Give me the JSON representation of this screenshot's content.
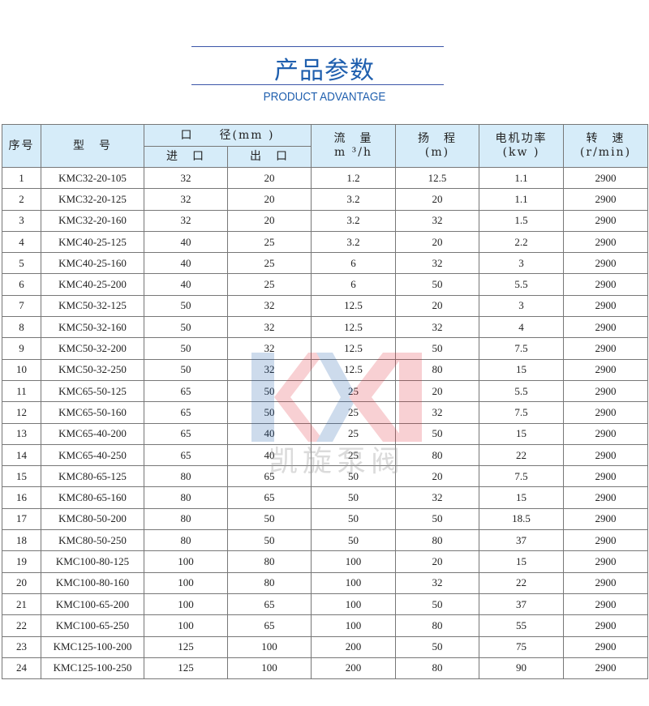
{
  "header": {
    "title": "产品参数",
    "subtitle": "PRODUCT ADVANTAGE"
  },
  "table": {
    "headers": {
      "no": "序号",
      "model": "型　号",
      "diameter": "口　　径(mm )",
      "inlet": "进　口",
      "outlet": "出　口",
      "flow": "流　量",
      "flow_unit": "m ³/h",
      "head": "扬　程",
      "head_unit": "(m)",
      "power": "电机功率",
      "power_unit": "(kw )",
      "speed": "转　速",
      "speed_unit": "(r/min)"
    },
    "rows": [
      [
        "1",
        "KMC32-20-105",
        "32",
        "20",
        "1.2",
        "12.5",
        "1.1",
        "2900"
      ],
      [
        "2",
        "KMC32-20-125",
        "32",
        "20",
        "3.2",
        "20",
        "1.1",
        "2900"
      ],
      [
        "3",
        "KMC32-20-160",
        "32",
        "20",
        "3.2",
        "32",
        "1.5",
        "2900"
      ],
      [
        "4",
        "KMC40-25-125",
        "40",
        "25",
        "3.2",
        "20",
        "2.2",
        "2900"
      ],
      [
        "5",
        "KMC40-25-160",
        "40",
        "25",
        "6",
        "32",
        "3",
        "2900"
      ],
      [
        "6",
        "KMC40-25-200",
        "40",
        "25",
        "6",
        "50",
        "5.5",
        "2900"
      ],
      [
        "7",
        "KMC50-32-125",
        "50",
        "32",
        "12.5",
        "20",
        "3",
        "2900"
      ],
      [
        "8",
        "KMC50-32-160",
        "50",
        "32",
        "12.5",
        "32",
        "4",
        "2900"
      ],
      [
        "9",
        "KMC50-32-200",
        "50",
        "32",
        "12.5",
        "50",
        "7.5",
        "2900"
      ],
      [
        "10",
        "KMC50-32-250",
        "50",
        "32",
        "12.5",
        "80",
        "15",
        "2900"
      ],
      [
        "11",
        "KMC65-50-125",
        "65",
        "50",
        "25",
        "20",
        "5.5",
        "2900"
      ],
      [
        "12",
        "KMC65-50-160",
        "65",
        "50",
        "25",
        "32",
        "7.5",
        "2900"
      ],
      [
        "13",
        "KMC65-40-200",
        "65",
        "40",
        "25",
        "50",
        "15",
        "2900"
      ],
      [
        "14",
        "KMC65-40-250",
        "65",
        "40",
        "25",
        "80",
        "22",
        "2900"
      ],
      [
        "15",
        "KMC80-65-125",
        "80",
        "65",
        "50",
        "20",
        "7.5",
        "2900"
      ],
      [
        "16",
        "KMC80-65-160",
        "80",
        "65",
        "50",
        "32",
        "15",
        "2900"
      ],
      [
        "17",
        "KMC80-50-200",
        "80",
        "50",
        "50",
        "50",
        "18.5",
        "2900"
      ],
      [
        "18",
        "KMC80-50-250",
        "80",
        "50",
        "50",
        "80",
        "37",
        "2900"
      ],
      [
        "19",
        "KMC100-80-125",
        "100",
        "80",
        "100",
        "20",
        "15",
        "2900"
      ],
      [
        "20",
        "KMC100-80-160",
        "100",
        "80",
        "100",
        "32",
        "22",
        "2900"
      ],
      [
        "21",
        "KMC100-65-200",
        "100",
        "65",
        "100",
        "50",
        "37",
        "2900"
      ],
      [
        "22",
        "KMC100-65-250",
        "100",
        "65",
        "100",
        "80",
        "55",
        "2900"
      ],
      [
        "23",
        "KMC125-100-200",
        "125",
        "100",
        "200",
        "50",
        "75",
        "2900"
      ],
      [
        "24",
        "KMC125-100-250",
        "125",
        "100",
        "200",
        "80",
        "90",
        "2900"
      ]
    ]
  },
  "watermark": {
    "logo": "KXM",
    "text": "凯旋泵阀"
  },
  "colors": {
    "accent": "#1f5fae",
    "header_bg": "#d6ecf9"
  }
}
